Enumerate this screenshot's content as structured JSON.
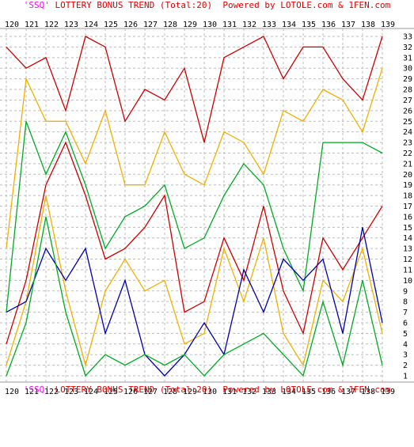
{
  "header": {
    "quote_open": "'SSQ'",
    "text": " LOTTERY BONUS TREND (Total:20)  Powered by LOTOLE.com & 1FEN.com"
  },
  "footer": {
    "quote_open": "'SSQ'",
    "text": " LOTTERY BONUS TREND (Total:20)  Powered by LOTOLE.com & 1FEN.com"
  },
  "chart_data": {
    "type": "line",
    "x": [
      120,
      121,
      122,
      123,
      124,
      125,
      126,
      127,
      128,
      129,
      130,
      131,
      132,
      133,
      134,
      135,
      136,
      137,
      138,
      139
    ],
    "ylim": [
      1,
      33
    ],
    "y_ticks": [
      1,
      2,
      3,
      4,
      5,
      6,
      7,
      8,
      9,
      10,
      11,
      12,
      13,
      14,
      15,
      16,
      17,
      18,
      19,
      20,
      21,
      22,
      23,
      24,
      25,
      26,
      27,
      28,
      29,
      30,
      31,
      32,
      33
    ],
    "grid": true,
    "series": [
      {
        "color": "#cc0000",
        "values": [
          32,
          30,
          31,
          26,
          33,
          32,
          25,
          28,
          27,
          30,
          23,
          31,
          32,
          33,
          29,
          32,
          32,
          29,
          27,
          33
        ]
      },
      {
        "color": "#f0b000",
        "values": [
          13,
          29,
          25,
          25,
          21,
          26,
          19,
          19,
          24,
          20,
          19,
          24,
          23,
          20,
          26,
          25,
          28,
          27,
          24,
          30
        ]
      },
      {
        "color": "#00aa22",
        "values": [
          7,
          25,
          20,
          24,
          19,
          13,
          16,
          17,
          19,
          13,
          14,
          18,
          21,
          19,
          13,
          9,
          23,
          23,
          23,
          22
        ]
      },
      {
        "color": "#cc0000",
        "values": [
          4,
          10,
          19,
          23,
          18,
          12,
          13,
          15,
          18,
          7,
          8,
          14,
          10,
          17,
          9,
          5,
          14,
          11,
          14,
          17
        ]
      },
      {
        "color": "#f0b000",
        "values": [
          2,
          8,
          18,
          9,
          2,
          9,
          12,
          9,
          10,
          4,
          5,
          13,
          8,
          14,
          5,
          2,
          10,
          8,
          13,
          5
        ]
      },
      {
        "color": "#0000aa",
        "values": [
          7,
          8,
          13,
          10,
          13,
          5,
          10,
          3,
          1,
          3,
          6,
          3,
          11,
          7,
          12,
          10,
          12,
          5,
          15,
          6
        ]
      },
      {
        "color": "#00aa22",
        "values": [
          1,
          6,
          16,
          7,
          1,
          3,
          2,
          3,
          2,
          3,
          1,
          3,
          4,
          5,
          3,
          1,
          8,
          2,
          10,
          2
        ]
      }
    ]
  }
}
